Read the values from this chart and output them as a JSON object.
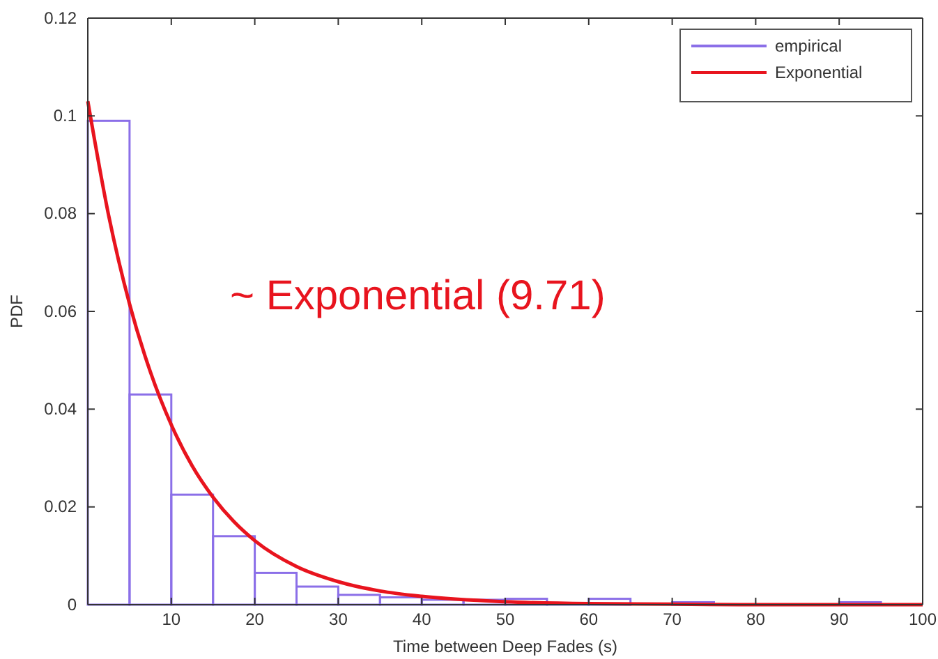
{
  "chart_data": {
    "type": "histogram",
    "xlabel": "Time between Deep Fades (s)",
    "ylabel": "PDF",
    "bins": [
      0,
      5,
      10,
      15,
      20,
      25,
      30,
      35,
      40,
      45,
      50,
      55,
      60,
      65,
      70,
      75,
      80,
      85,
      90,
      95,
      100
    ],
    "series": [
      {
        "name": "empirical",
        "color": "#8b6fe8",
        "values": [
          0.099,
          0.043,
          0.0225,
          0.014,
          0.0065,
          0.0037,
          0.002,
          0.0015,
          0.001,
          0.001,
          0.0012,
          0.0002,
          0.0012,
          0,
          0.0005,
          0,
          0,
          0,
          0.0005,
          0
        ]
      },
      {
        "name": "Exponential",
        "type": "line",
        "color": "#e8141e",
        "x": [
          0,
          2.5,
          5,
          7.5,
          10,
          12.5,
          15,
          17.5,
          20,
          25,
          30,
          35,
          40,
          50,
          60,
          70,
          80,
          100
        ],
        "values": [
          0.103,
          0.0796,
          0.0615,
          0.0476,
          0.0368,
          0.0284,
          0.022,
          0.017,
          0.0131,
          0.0078,
          0.0047,
          0.0028,
          0.0017,
          0.0006,
          0.0002,
          0.0001,
          0,
          0
        ]
      }
    ],
    "xlim": [
      0,
      100
    ],
    "ylim": [
      0,
      0.12
    ],
    "xticks": [
      10,
      20,
      30,
      40,
      50,
      60,
      70,
      80,
      90,
      100
    ],
    "yticks": [
      0,
      0.02,
      0.04,
      0.06,
      0.08,
      0.1,
      0.12
    ],
    "grid": false,
    "legend": "top right",
    "annotations": [
      "~ Exponential (9.71)"
    ]
  }
}
